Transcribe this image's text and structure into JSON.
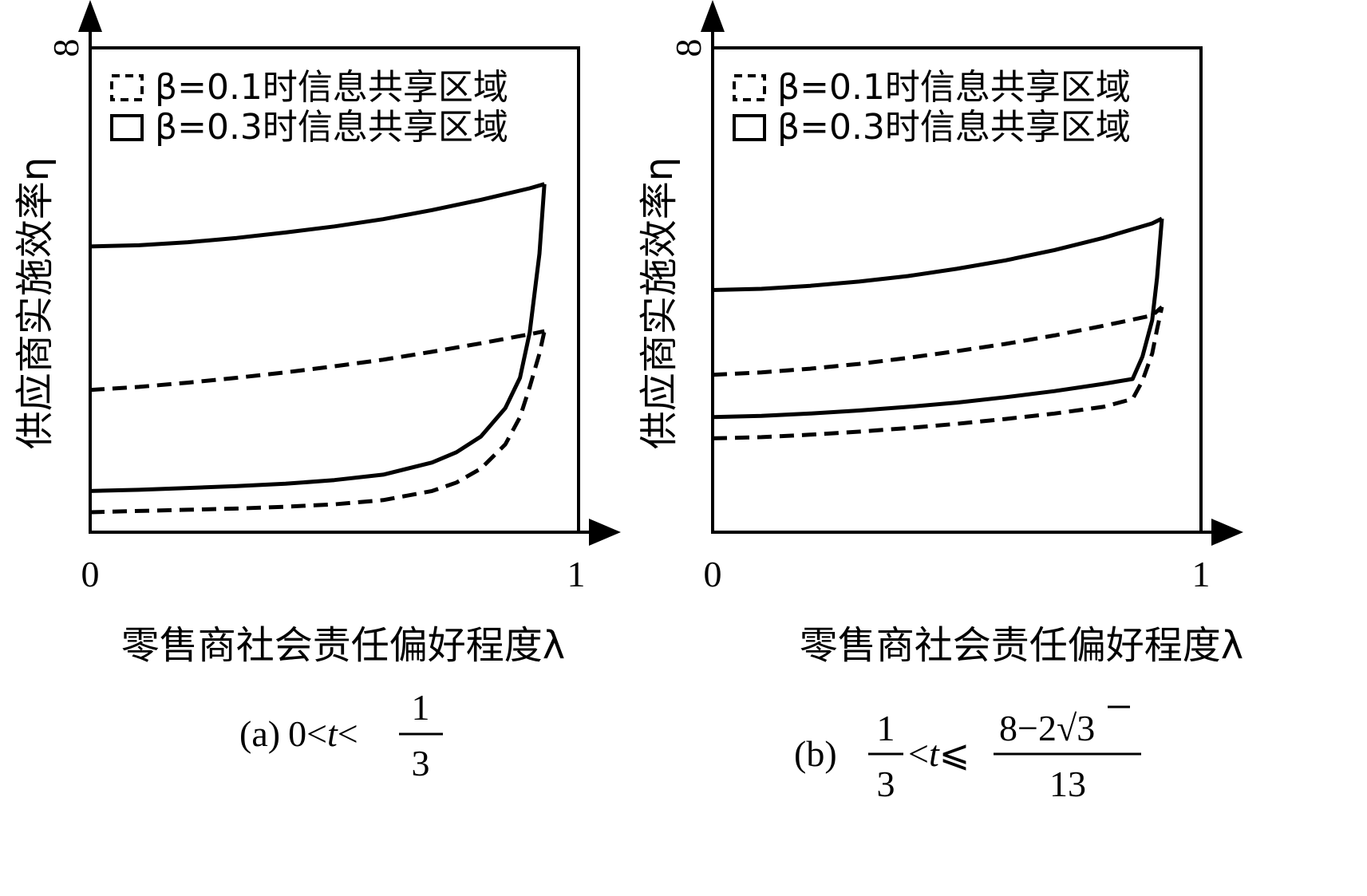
{
  "chart_data": [
    {
      "type": "line",
      "panel": "a",
      "caption": {
        "label": "(a)",
        "condition_left": "0<",
        "variable": "t",
        "condition_mid": "<",
        "numerator": "1",
        "denominator": "3"
      },
      "xlabel": "零售商社会责任偏好程度λ",
      "ylabel": "供应商实施效率η",
      "xlim": [
        0,
        1
      ],
      "ylim": [
        0,
        8
      ],
      "x_ticks": [
        "0",
        "1"
      ],
      "y_ticks": [
        "8"
      ],
      "legend": {
        "position": "top-left",
        "entries": [
          {
            "label": "β=0.1时信息共享区域",
            "style": "dashed"
          },
          {
            "label": "β=0.3时信息共享区域",
            "style": "solid"
          }
        ]
      },
      "series": [
        {
          "style": "solid",
          "region": "β=0.3 upper",
          "x": [
            0,
            0.1,
            0.2,
            0.3,
            0.4,
            0.5,
            0.6,
            0.7,
            0.8,
            0.9,
            0.93
          ],
          "y": [
            4.72,
            4.74,
            4.79,
            4.86,
            4.95,
            5.05,
            5.17,
            5.32,
            5.49,
            5.68,
            5.75
          ]
        },
        {
          "style": "solid",
          "region": "β=0.3 lower",
          "x": [
            0,
            0.1,
            0.2,
            0.3,
            0.4,
            0.5,
            0.6,
            0.7,
            0.75,
            0.8,
            0.85,
            0.88,
            0.9,
            0.92,
            0.93
          ],
          "y": [
            0.68,
            0.7,
            0.73,
            0.76,
            0.8,
            0.86,
            0.95,
            1.15,
            1.32,
            1.58,
            2.05,
            2.55,
            3.3,
            4.6,
            5.75
          ]
        },
        {
          "style": "dashed",
          "region": "β=0.1 upper",
          "x": [
            0,
            0.1,
            0.2,
            0.3,
            0.4,
            0.5,
            0.6,
            0.7,
            0.8,
            0.9,
            0.93
          ],
          "y": [
            2.35,
            2.4,
            2.47,
            2.55,
            2.64,
            2.74,
            2.85,
            2.98,
            3.12,
            3.27,
            3.32
          ]
        },
        {
          "style": "dashed",
          "region": "β=0.1 lower",
          "x": [
            0,
            0.1,
            0.2,
            0.3,
            0.4,
            0.5,
            0.6,
            0.7,
            0.75,
            0.8,
            0.85,
            0.88,
            0.9,
            0.92,
            0.93
          ],
          "y": [
            0.33,
            0.35,
            0.37,
            0.39,
            0.42,
            0.46,
            0.53,
            0.68,
            0.82,
            1.05,
            1.45,
            1.9,
            2.4,
            2.95,
            3.32
          ]
        }
      ]
    },
    {
      "type": "line",
      "panel": "b",
      "caption": {
        "label": "(b)",
        "frac_numerator": "1",
        "frac_denominator": "3",
        "condition_left": "<",
        "variable": "t",
        "condition_mid": "⩽",
        "numerator_text": "8−2",
        "sqrt_arg": "3",
        "denominator": "13"
      },
      "xlabel": "零售商社会责任偏好程度λ",
      "ylabel": "供应商实施效率η",
      "xlim": [
        0,
        1
      ],
      "ylim": [
        0,
        8
      ],
      "x_ticks": [
        "0",
        "1"
      ],
      "y_ticks": [
        "8"
      ],
      "legend": {
        "position": "top-left",
        "entries": [
          {
            "label": "β=0.1时信息共享区域",
            "style": "dashed"
          },
          {
            "label": "β=0.3时信息共享区域",
            "style": "solid"
          }
        ]
      },
      "series": [
        {
          "style": "solid",
          "region": "β=0.3 upper",
          "x": [
            0,
            0.1,
            0.2,
            0.3,
            0.4,
            0.5,
            0.6,
            0.7,
            0.8,
            0.9,
            0.92
          ],
          "y": [
            4.0,
            4.02,
            4.07,
            4.14,
            4.23,
            4.35,
            4.49,
            4.66,
            4.86,
            5.1,
            5.18
          ]
        },
        {
          "style": "solid",
          "region": "β=0.3 lower",
          "x": [
            0,
            0.1,
            0.2,
            0.3,
            0.4,
            0.5,
            0.6,
            0.7,
            0.8,
            0.86,
            0.88,
            0.9,
            0.91,
            0.92
          ],
          "y": [
            1.9,
            1.92,
            1.96,
            2.01,
            2.07,
            2.14,
            2.23,
            2.33,
            2.45,
            2.53,
            2.9,
            3.5,
            4.2,
            5.18
          ]
        },
        {
          "style": "dashed",
          "region": "β=0.1 upper",
          "x": [
            0,
            0.1,
            0.2,
            0.3,
            0.4,
            0.5,
            0.6,
            0.7,
            0.8,
            0.9,
            0.92
          ],
          "y": [
            2.6,
            2.64,
            2.7,
            2.78,
            2.88,
            2.99,
            3.11,
            3.25,
            3.41,
            3.58,
            3.72
          ]
        },
        {
          "style": "dashed",
          "region": "β=0.1 lower",
          "x": [
            0,
            0.1,
            0.2,
            0.3,
            0.4,
            0.5,
            0.6,
            0.7,
            0.8,
            0.86,
            0.88,
            0.9,
            0.91,
            0.92
          ],
          "y": [
            1.55,
            1.57,
            1.61,
            1.66,
            1.72,
            1.79,
            1.87,
            1.96,
            2.07,
            2.2,
            2.5,
            2.95,
            3.35,
            3.72
          ]
        }
      ]
    }
  ]
}
